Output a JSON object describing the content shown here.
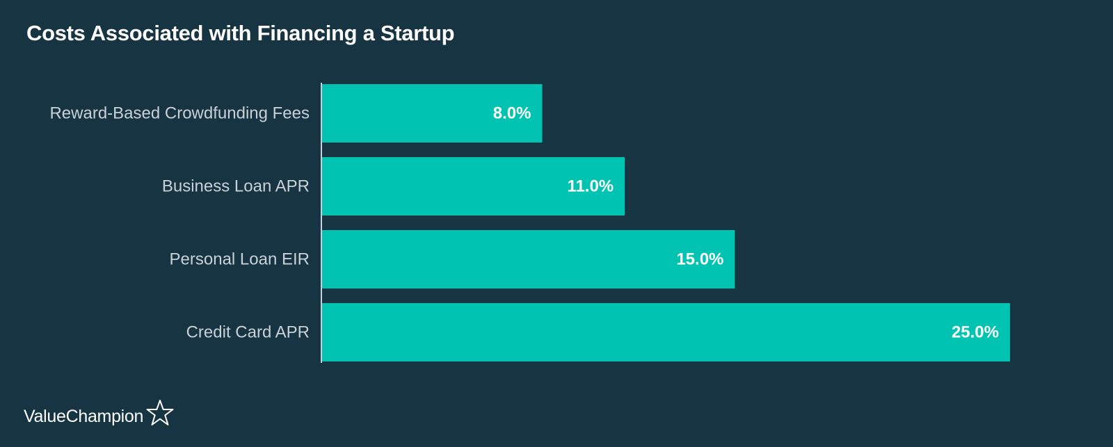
{
  "chart_data": {
    "type": "bar",
    "orientation": "horizontal",
    "title": "Costs Associated with Financing a Startup",
    "categories": [
      "Reward-Based Crowdfunding Fees",
      "Business Loan APR",
      "Personal Loan EIR",
      "Credit Card APR"
    ],
    "values": [
      8.0,
      11.0,
      15.0,
      25.0
    ],
    "value_labels": [
      "8.0%",
      "11.0%",
      "15.0%",
      "25.0%"
    ],
    "xlim": [
      0,
      25
    ],
    "grid": false,
    "legend": "none",
    "colors": {
      "background": "#163442",
      "bar": "#00c4b1",
      "axis": "#c9d1d6"
    }
  },
  "brand": {
    "name": "ValueChampion",
    "icon": "star-outline-icon"
  }
}
